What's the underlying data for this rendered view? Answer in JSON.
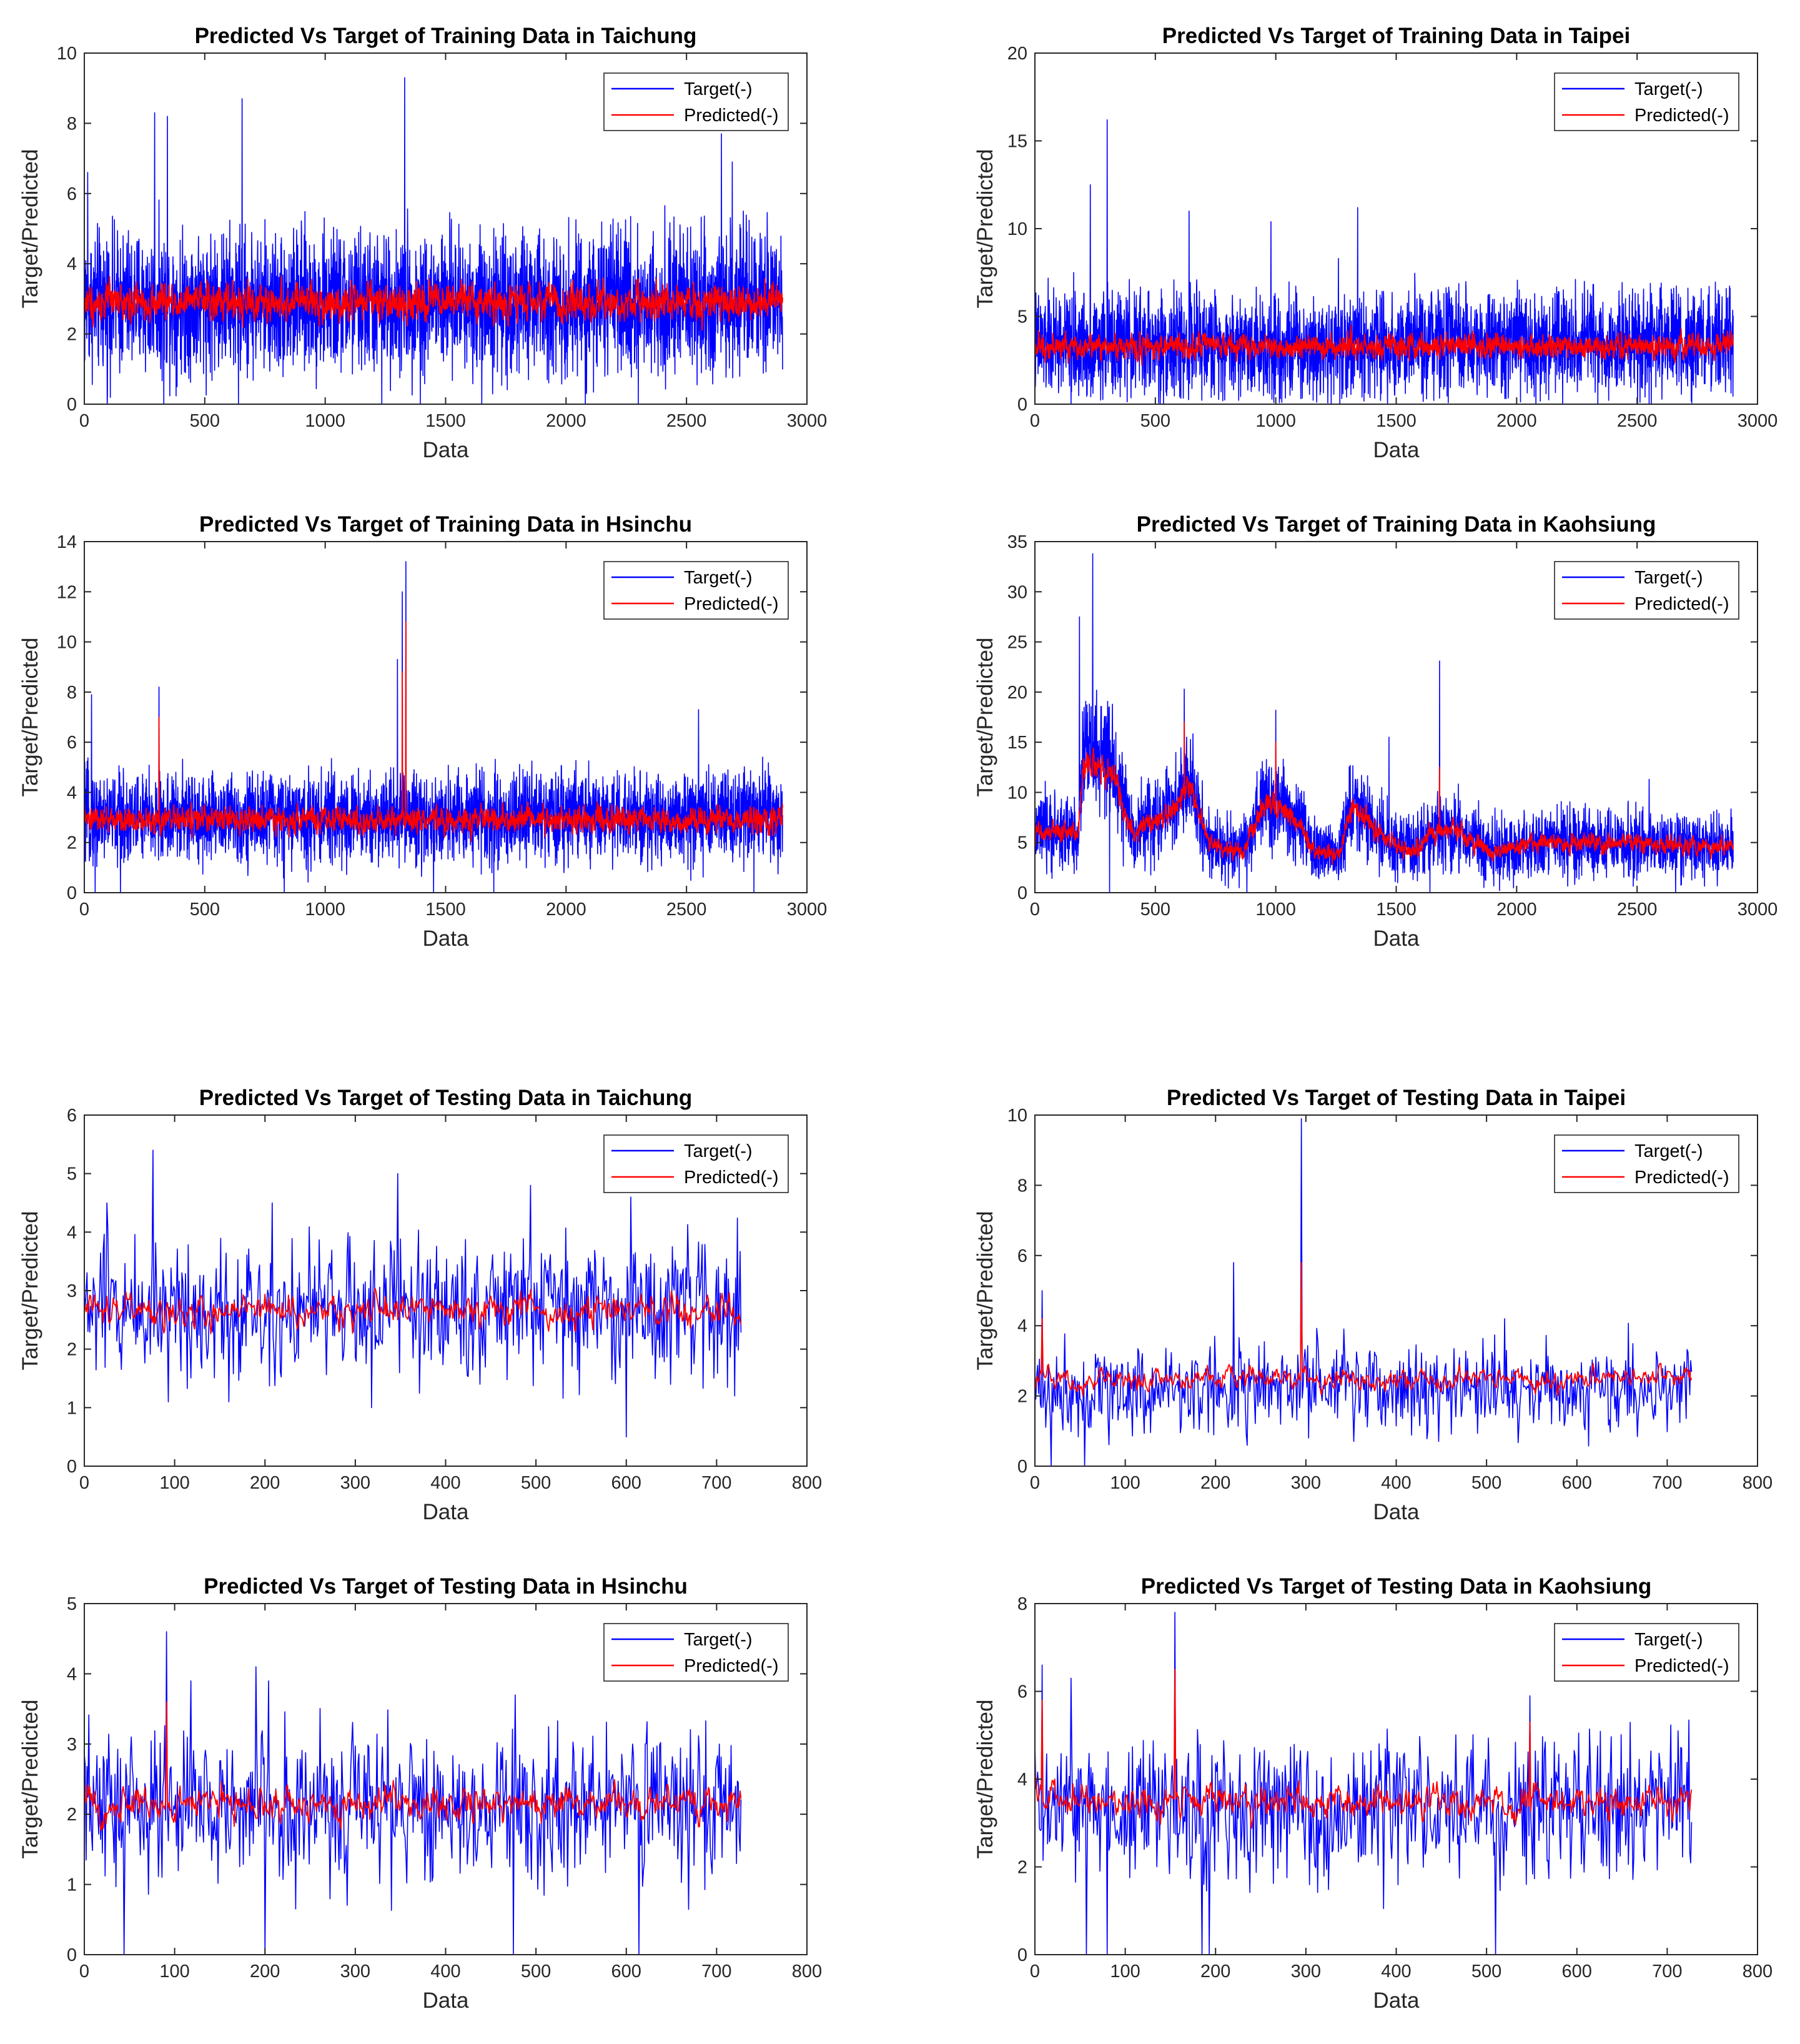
{
  "figure": {
    "legend_labels": [
      "Target(-)",
      "Predicted(-)"
    ],
    "colors": {
      "target": "#0000ff",
      "predicted": "#ff0000",
      "axes": "#262626"
    }
  },
  "chart_data": [
    {
      "type": "line",
      "title": "Predicted Vs Target of Training Data in Taichung",
      "xlabel": "Data",
      "ylabel": "Target/Predicted",
      "xlim": [
        0,
        3000
      ],
      "ylim": [
        0,
        10
      ],
      "xticks": [
        0,
        500,
        1000,
        1500,
        2000,
        2500,
        3000
      ],
      "yticks": [
        0,
        2,
        4,
        6,
        8,
        10
      ],
      "n": 2900,
      "legend": "top-right",
      "series": [
        {
          "name": "Target(-)",
          "color": "#0000ff",
          "mean": 2.9,
          "noise": 1.0,
          "min_clip": 0,
          "max_clip": 9.3,
          "spikes": [
            [
              292,
              8.3
            ],
            [
              345,
              8.2
            ],
            [
              655,
              8.7
            ],
            [
              1330,
              9.3
            ],
            [
              2645,
              7.7
            ],
            [
              2690,
              6.9
            ],
            [
              14,
              6.6
            ]
          ],
          "drops": [
            [
              95,
              0
            ],
            [
              330,
              0
            ],
            [
              640,
              0
            ],
            [
              1235,
              0
            ],
            [
              1395,
              0
            ],
            [
              1650,
              0
            ],
            [
              2080,
              0
            ],
            [
              2300,
              0
            ]
          ]
        },
        {
          "name": "Predicted(-)",
          "color": "#ff0000",
          "mean": 2.9,
          "noise": 0.45,
          "smooth": 0.55,
          "min_clip": 1.4,
          "max_clip": 4.8
        }
      ]
    },
    {
      "type": "line",
      "title": "Predicted Vs Target of Training Data in Taipei",
      "xlabel": "Data",
      "ylabel": "Target/Predicted",
      "xlim": [
        0,
        3000
      ],
      "ylim": [
        0,
        20
      ],
      "xticks": [
        0,
        500,
        1000,
        1500,
        2000,
        2500,
        3000
      ],
      "yticks": [
        0,
        5,
        10,
        15,
        20
      ],
      "n": 2900,
      "legend": "top-right",
      "series": [
        {
          "name": "Target(-)",
          "color": "#0000ff",
          "mean": 3.4,
          "noise": 1.5,
          "min_clip": 0,
          "max_clip": 16.2,
          "spikes": [
            [
              300,
              16.2
            ],
            [
              230,
              12.5
            ],
            [
              640,
              11.0
            ],
            [
              980,
              10.4
            ],
            [
              1340,
              11.2
            ],
            [
              1260,
              8.3
            ],
            [
              2600,
              6.9
            ]
          ],
          "drops": [
            [
              150,
              0
            ],
            [
              520,
              0
            ],
            [
              1230,
              0
            ],
            [
              2080,
              0
            ],
            [
              2550,
              0
            ]
          ]
        },
        {
          "name": "Predicted(-)",
          "color": "#ff0000",
          "mean": 3.3,
          "noise": 0.6,
          "smooth": 0.55,
          "min_clip": 1.2,
          "max_clip": 6.5
        }
      ]
    },
    {
      "type": "line",
      "title": "Predicted Vs Target of Training Data in Hsinchu",
      "xlabel": "Data",
      "ylabel": "Target/Predicted",
      "xlim": [
        0,
        3000
      ],
      "ylim": [
        0,
        14
      ],
      "xticks": [
        0,
        500,
        1000,
        1500,
        2000,
        2500,
        3000
      ],
      "yticks": [
        0,
        2,
        4,
        6,
        8,
        10,
        12,
        14
      ],
      "n": 2900,
      "legend": "top-right",
      "series": [
        {
          "name": "Target(-)",
          "color": "#0000ff",
          "mean": 3.0,
          "noise": 0.9,
          "min_clip": 0,
          "max_clip": 13.2,
          "spikes": [
            [
              1300,
              9.3
            ],
            [
              1320,
              12.0
            ],
            [
              1335,
              13.2
            ],
            [
              310,
              8.2
            ],
            [
              2550,
              7.3
            ],
            [
              30,
              7.9
            ]
          ],
          "drops": [
            [
              45,
              0
            ],
            [
              150,
              0
            ],
            [
              830,
              0
            ],
            [
              1450,
              0
            ],
            [
              1700,
              0
            ],
            [
              2780,
              0
            ]
          ]
        },
        {
          "name": "Predicted(-)",
          "color": "#ff0000",
          "mean": 2.9,
          "noise": 0.45,
          "smooth": 0.55,
          "min_clip": 1.5,
          "max_clip": 10.8,
          "spikes": [
            [
              1335,
              10.8
            ],
            [
              1320,
              8.8
            ],
            [
              310,
              7.0
            ]
          ]
        }
      ]
    },
    {
      "type": "line",
      "title": "Predicted Vs Target of Training Data in Kaohsiung",
      "xlabel": "Data",
      "ylabel": "Target/Predicted",
      "xlim": [
        0,
        3000
      ],
      "ylim": [
        0,
        35
      ],
      "xticks": [
        0,
        500,
        1000,
        1500,
        2000,
        2500,
        3000
      ],
      "yticks": [
        0,
        5,
        10,
        15,
        20,
        25,
        30,
        35
      ],
      "n": 2900,
      "legend": "top-right",
      "series": [
        {
          "name": "Target(-)",
          "color": "#0000ff",
          "mean": 5.5,
          "noise": 1.8,
          "min_clip": 0,
          "max_clip": 33.8,
          "trend": [
            [
              0,
              6
            ],
            [
              180,
              6
            ],
            [
              200,
              14
            ],
            [
              320,
              13
            ],
            [
              400,
              6
            ],
            [
              560,
              8
            ],
            [
              640,
              11
            ],
            [
              720,
              5
            ],
            [
              860,
              4
            ],
            [
              950,
              9
            ],
            [
              1060,
              8
            ],
            [
              1160,
              4
            ],
            [
              1260,
              4
            ],
            [
              1320,
              9
            ],
            [
              1420,
              6
            ],
            [
              1560,
              4
            ],
            [
              1650,
              6
            ],
            [
              1760,
              6
            ],
            [
              1900,
              4
            ],
            [
              2100,
              5
            ],
            [
              2400,
              5
            ],
            [
              2900,
              4.5
            ]
          ],
          "spikes": [
            [
              240,
              33.8
            ],
            [
              185,
              27.5
            ],
            [
              620,
              20.3
            ],
            [
              1000,
              18.2
            ],
            [
              1680,
              23.1
            ],
            [
              1470,
              15.5
            ],
            [
              2550,
              11.3
            ]
          ],
          "drops": [
            [
              310,
              0
            ],
            [
              880,
              0
            ],
            [
              1640,
              0
            ],
            [
              2660,
              0
            ]
          ]
        },
        {
          "name": "Predicted(-)",
          "color": "#ff0000",
          "mean": 5.5,
          "noise": 0.9,
          "smooth": 0.6,
          "min_clip": 1.5,
          "max_clip": 19.0,
          "trend": [
            [
              0,
              6
            ],
            [
              180,
              6
            ],
            [
              200,
              13
            ],
            [
              320,
              12
            ],
            [
              400,
              6
            ],
            [
              560,
              8
            ],
            [
              640,
              11
            ],
            [
              720,
              5
            ],
            [
              860,
              4
            ],
            [
              950,
              9
            ],
            [
              1060,
              8
            ],
            [
              1160,
              4
            ],
            [
              1260,
              4
            ],
            [
              1320,
              9
            ],
            [
              1420,
              6
            ],
            [
              1560,
              4
            ],
            [
              1650,
              6
            ],
            [
              1760,
              6
            ],
            [
              1900,
              4
            ],
            [
              2100,
              5
            ],
            [
              2400,
              5
            ],
            [
              2900,
              4.5
            ]
          ],
          "spikes": [
            [
              620,
              17.0
            ],
            [
              1000,
              15.0
            ],
            [
              1680,
              12.5
            ]
          ]
        }
      ]
    },
    {
      "type": "line",
      "title": "Predicted Vs Target of Testing Data in Taichung",
      "xlabel": "Data",
      "ylabel": "Target/Predicted",
      "xlim": [
        0,
        800
      ],
      "ylim": [
        0,
        6
      ],
      "xticks": [
        0,
        100,
        200,
        300,
        400,
        500,
        600,
        700,
        800
      ],
      "yticks": [
        0,
        1,
        2,
        3,
        4,
        5,
        6
      ],
      "n": 728,
      "legend": "top-right",
      "series": [
        {
          "name": "Target(-)",
          "color": "#0000ff",
          "mean": 2.7,
          "noise": 0.6,
          "min_clip": 0.5,
          "max_clip": 5.4,
          "spikes": [
            [
              76,
              5.4
            ],
            [
              347,
              5.0
            ],
            [
              494,
              4.8
            ],
            [
              605,
              4.6
            ],
            [
              208,
              4.5
            ],
            [
              25,
              4.5
            ]
          ],
          "drops": [
            [
              600,
              0.5
            ],
            [
              318,
              1.0
            ],
            [
              160,
              1.1
            ],
            [
              720,
              1.2
            ]
          ]
        },
        {
          "name": "Predicted(-)",
          "color": "#ff0000",
          "mean": 2.65,
          "noise": 0.25,
          "smooth": 0.55,
          "min_clip": 1.7,
          "max_clip": 3.6
        }
      ]
    },
    {
      "type": "line",
      "title": "Predicted Vs Target of Testing Data in Taipei",
      "xlabel": "Data",
      "ylabel": "Target/Predicted",
      "xlim": [
        0,
        800
      ],
      "ylim": [
        0,
        10
      ],
      "xticks": [
        0,
        100,
        200,
        300,
        400,
        500,
        600,
        700,
        800
      ],
      "yticks": [
        0,
        2,
        4,
        6,
        8,
        10
      ],
      "n": 728,
      "legend": "top-right",
      "series": [
        {
          "name": "Target(-)",
          "color": "#0000ff",
          "mean": 2.2,
          "noise": 0.65,
          "min_clip": 0,
          "max_clip": 9.9,
          "spikes": [
            [
              295,
              9.9
            ],
            [
              220,
              5.8
            ],
            [
              8,
              5.0
            ],
            [
              18,
              5.4
            ],
            [
              520,
              4.2
            ]
          ],
          "drops": [
            [
              18,
              0
            ],
            [
              55,
              0
            ]
          ]
        },
        {
          "name": "Predicted(-)",
          "color": "#ff0000",
          "mean": 2.5,
          "noise": 0.3,
          "smooth": 0.6,
          "min_clip": 1.5,
          "max_clip": 5.8,
          "spikes": [
            [
              295,
              5.8
            ],
            [
              8,
              4.2
            ]
          ]
        }
      ]
    },
    {
      "type": "line",
      "title": "Predicted Vs Target of Testing Data in Hsinchu",
      "xlabel": "Data",
      "ylabel": "Target/Predicted",
      "xlim": [
        0,
        800
      ],
      "ylim": [
        0,
        5
      ],
      "xticks": [
        0,
        100,
        200,
        300,
        400,
        500,
        600,
        700,
        800
      ],
      "yticks": [
        0,
        1,
        2,
        3,
        4,
        5
      ],
      "n": 728,
      "legend": "top-right",
      "series": [
        {
          "name": "Target(-)",
          "color": "#0000ff",
          "mean": 2.1,
          "noise": 0.55,
          "min_clip": 0,
          "max_clip": 4.6,
          "spikes": [
            [
              91,
              4.6
            ],
            [
              190,
              4.1
            ],
            [
              204,
              3.9
            ],
            [
              477,
              3.7
            ],
            [
              118,
              3.9
            ]
          ],
          "drops": [
            [
              44,
              0
            ],
            [
              200,
              0
            ],
            [
              475,
              0
            ],
            [
              614,
              0
            ]
          ]
        },
        {
          "name": "Predicted(-)",
          "color": "#ff0000",
          "mean": 2.15,
          "noise": 0.22,
          "smooth": 0.55,
          "min_clip": 1.4,
          "max_clip": 3.6,
          "spikes": [
            [
              91,
              3.6
            ]
          ]
        }
      ]
    },
    {
      "type": "line",
      "title": "Predicted Vs Target of Testing Data in Kaohsiung",
      "xlabel": "Data",
      "ylabel": "Target/Predicted",
      "xlim": [
        0,
        800
      ],
      "ylim": [
        0,
        8
      ],
      "xticks": [
        0,
        100,
        200,
        300,
        400,
        500,
        600,
        700,
        800
      ],
      "yticks": [
        0,
        2,
        4,
        6,
        8
      ],
      "n": 728,
      "legend": "top-right",
      "series": [
        {
          "name": "Target(-)",
          "color": "#0000ff",
          "mean": 3.3,
          "noise": 0.8,
          "min_clip": 0,
          "max_clip": 7.8,
          "spikes": [
            [
              155,
              7.8
            ],
            [
              8,
              6.6
            ],
            [
              40,
              6.3
            ],
            [
              548,
              5.9
            ]
          ],
          "drops": [
            [
              57,
              0
            ],
            [
              80,
              0
            ],
            [
              185,
              0
            ],
            [
              193,
              0
            ],
            [
              510,
              0
            ]
          ]
        },
        {
          "name": "Predicted(-)",
          "color": "#ff0000",
          "mean": 3.5,
          "noise": 0.35,
          "smooth": 0.55,
          "min_clip": 2.4,
          "max_clip": 6.5,
          "spikes": [
            [
              155,
              6.5
            ],
            [
              8,
              5.8
            ],
            [
              548,
              5.3
            ]
          ]
        }
      ]
    }
  ]
}
